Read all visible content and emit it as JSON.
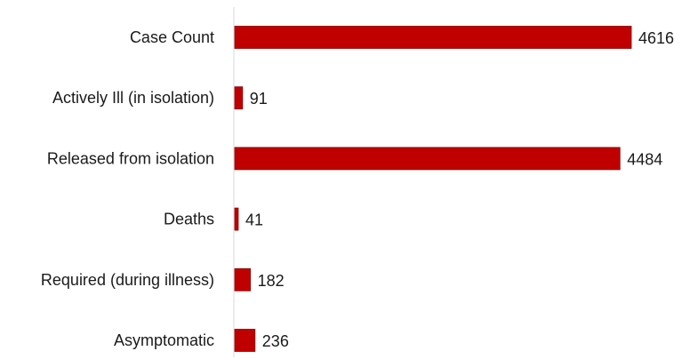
{
  "chart_data": {
    "type": "bar",
    "orientation": "horizontal",
    "categories": [
      "Case Count",
      "Actively Ill (in isolation)",
      "Released from isolation",
      "Deaths",
      "Required (during illness)",
      "Asymptomatic"
    ],
    "values": [
      4616,
      91,
      4484,
      41,
      182,
      236
    ],
    "data_labels": [
      "4616",
      "91",
      "4484",
      "41",
      "182",
      "236"
    ],
    "xlim": [
      0,
      4616
    ],
    "grid": false,
    "legend": "none",
    "colors": {
      "bar_fill": "#c00000",
      "bar_stroke": "#8b0000",
      "axis_line": "#d9d9d9"
    }
  }
}
